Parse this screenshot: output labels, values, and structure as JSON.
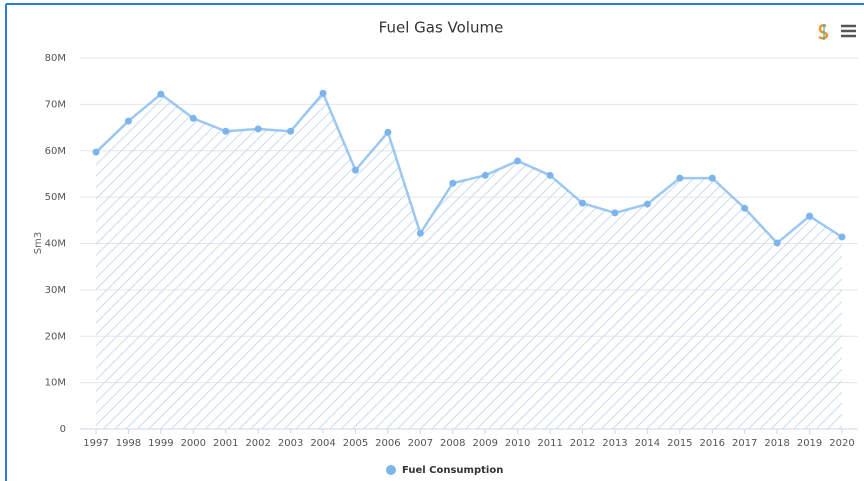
{
  "chart_data": {
    "type": "area",
    "title": "Fuel Gas Volume",
    "y_label": "Sm3",
    "categories": [
      "1997",
      "1998",
      "1999",
      "2000",
      "2001",
      "2002",
      "2003",
      "2004",
      "2005",
      "2006",
      "2007",
      "2008",
      "2009",
      "2010",
      "2011",
      "2012",
      "2013",
      "2014",
      "2015",
      "2016",
      "2017",
      "2018",
      "2019",
      "2020"
    ],
    "series": [
      {
        "name": "Fuel Consumption",
        "color": "#7cb5ec",
        "values": [
          59700000,
          66400000,
          72200000,
          67000000,
          64200000,
          64700000,
          64200000,
          72400000,
          55800000,
          64000000,
          42200000,
          53000000,
          54700000,
          57800000,
          54700000,
          48700000,
          46600000,
          48500000,
          54100000,
          54100000,
          47600000,
          40100000,
          45900000,
          41400000
        ]
      }
    ],
    "ylim": [
      0,
      80000000
    ],
    "yticks": [
      0,
      {
        "value": 10000000,
        "label": "10M"
      },
      {
        "value": 20000000,
        "label": "20M"
      },
      {
        "value": 30000000,
        "label": "30M"
      },
      {
        "value": 40000000,
        "label": "40M"
      },
      {
        "value": 50000000,
        "label": "50M"
      },
      {
        "value": 60000000,
        "label": "60M"
      },
      {
        "value": 70000000,
        "label": "70M"
      },
      {
        "value": 80000000,
        "label": "80M"
      }
    ],
    "grid": true,
    "legend": "bottom"
  }
}
